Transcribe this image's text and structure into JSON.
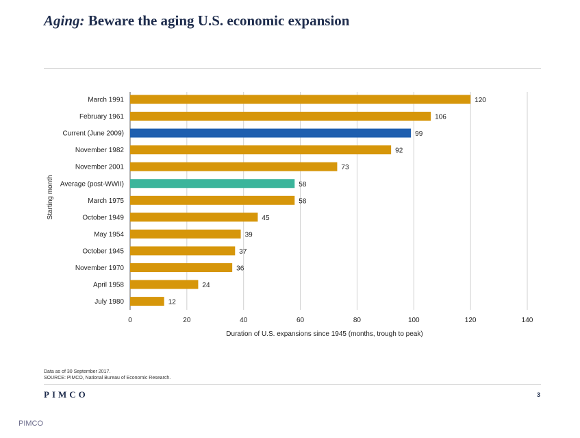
{
  "slide": {
    "title_italic": "Aging:",
    "title_rest": " Beware the aging U.S. economic expansion",
    "footnote_1": "Data as of 30 September 2017.",
    "footnote_2": "SOURCE: PIMCO, National Bureau of Economic Research.",
    "logo": "PIMCO",
    "page_number": "3",
    "watermark": "PIMCO"
  },
  "colors": {
    "default_bar": "#d6960a",
    "current_bar": "#1f5faf",
    "average_bar": "#3bb59b",
    "grid": "#d0d0d0",
    "axis": "#555555"
  },
  "chart_data": {
    "type": "bar",
    "orientation": "horizontal",
    "categories": [
      "March 1991",
      "February 1961",
      "Current (June 2009)",
      "November 1982",
      "November 2001",
      "Average (post-WWII)",
      "March 1975",
      "October 1949",
      "May 1954",
      "October 1945",
      "November 1970",
      "April 1958",
      "July 1980"
    ],
    "values": [
      120,
      106,
      99,
      92,
      73,
      58,
      58,
      45,
      39,
      37,
      36,
      24,
      12
    ],
    "highlight": {
      "Current (June 2009)": "current",
      "Average (post-WWII)": "average"
    },
    "xlabel": "Duration of U.S. expansions since 1945 (months, trough to peak)",
    "ylabel": "Starting month",
    "xlim": [
      0,
      140
    ],
    "xticks": [
      0,
      20,
      40,
      60,
      80,
      100,
      120,
      140
    ],
    "grid": true
  }
}
